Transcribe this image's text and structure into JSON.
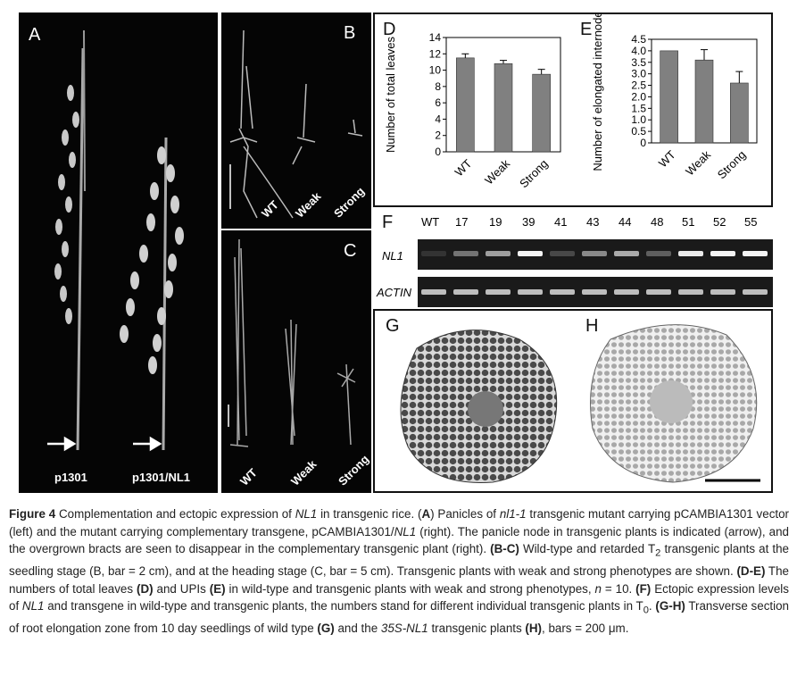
{
  "panels": {
    "A": {
      "label": "A",
      "left_caption": "p1301",
      "right_caption": "p1301/NL1"
    },
    "B": {
      "label": "B",
      "labels": [
        "WT",
        "Weak",
        "Strong"
      ]
    },
    "C": {
      "label": "C",
      "labels": [
        "WT",
        "Weak",
        "Strong"
      ]
    },
    "D": {
      "label": "D"
    },
    "E": {
      "label": "E"
    },
    "F": {
      "label": "F",
      "lanes": [
        "WT",
        "17",
        "19",
        "39",
        "41",
        "43",
        "44",
        "48",
        "51",
        "52",
        "55"
      ],
      "row1_label": "NL1",
      "row2_label": "ACTIN",
      "nl1_intensity": [
        0.05,
        0.35,
        0.55,
        0.95,
        0.15,
        0.45,
        0.6,
        0.25,
        0.9,
        0.95,
        0.95
      ]
    },
    "G": {
      "label": "G"
    },
    "H": {
      "label": "H"
    }
  },
  "chart_data": [
    {
      "type": "bar",
      "title": "",
      "ylabel": "Number of total leaves",
      "xlabel": "",
      "categories": [
        "WT",
        "Weak",
        "Strong"
      ],
      "values": [
        11.5,
        10.8,
        9.5
      ],
      "errors": [
        0.5,
        0.4,
        0.6
      ],
      "ylim": [
        0,
        14
      ],
      "yticks": [
        "0",
        "2",
        "4",
        "6",
        "8",
        "10",
        "12",
        "14"
      ],
      "bar_color": "#808080"
    },
    {
      "type": "bar",
      "title": "",
      "ylabel": "Number of elongated internode",
      "xlabel": "",
      "categories": [
        "WT",
        "Weak",
        "Strong"
      ],
      "values": [
        4.0,
        3.6,
        2.6
      ],
      "errors": [
        0.0,
        0.45,
        0.5
      ],
      "ylim": [
        0,
        4.5
      ],
      "yticks": [
        "0",
        "0.5",
        "1.0",
        "1.5",
        "2.0",
        "2.5",
        "3.0",
        "3.5",
        "4.0",
        "4.5"
      ],
      "bar_color": "#808080"
    }
  ],
  "caption": {
    "fig": "Figure 4",
    "t1": " Complementation and ectopic expression of ",
    "nl1": "NL1",
    "t2": " in transgenic rice. (",
    "A": "A",
    "t3": ") Panicles of ",
    "nl11": "nl1-1",
    "t4": " transgenic mutant carrying pCAMBIA1301 vector (left) and the mutant carrying complementary transgene, pCAMBIA1301/",
    "nl1b": "NL1",
    "t5": " (right). The panicle node in transgenic plants is indicated (arrow), and the overgrown bracts are seen to disappear in the complementary transgenic plant (right). ",
    "BC": "(B-C)",
    "t6": " Wild-type and retarded T",
    "sub2": "2",
    "t7": " transgenic plants at the seedling stage (B, bar = 2 cm), and at the heading stage (C, bar = 5 cm). Transgenic plants with weak and strong phenotypes are shown. ",
    "DE": "(D-E)",
    "t8": " The numbers of total leaves ",
    "D": "(D)",
    "t9": " and UPIs ",
    "E": "(E)",
    "t10": " in wild-type and transgenic plants with weak and strong phenotypes, ",
    "n": "n",
    "t11": " = 10. ",
    "F": "(F)",
    "t12": " Ectopic expression levels of ",
    "nl1c": "NL1",
    "t13": " and transgene in wild-type and transgenic plants, the numbers stand for different individual transgenic plants in T",
    "sub0": "0",
    "t14": ". ",
    "GH": "(G-H)",
    "t15": " Transverse section of root elongation zone from 10 day seedlings of wild type ",
    "G": "(G)",
    "t16": " and the ",
    "s35": "35S-NL1",
    "t17": " transgenic plants ",
    "H": "(H)",
    "t18": ", bars = 200 ",
    "mu": "μ",
    "t19": "m."
  }
}
